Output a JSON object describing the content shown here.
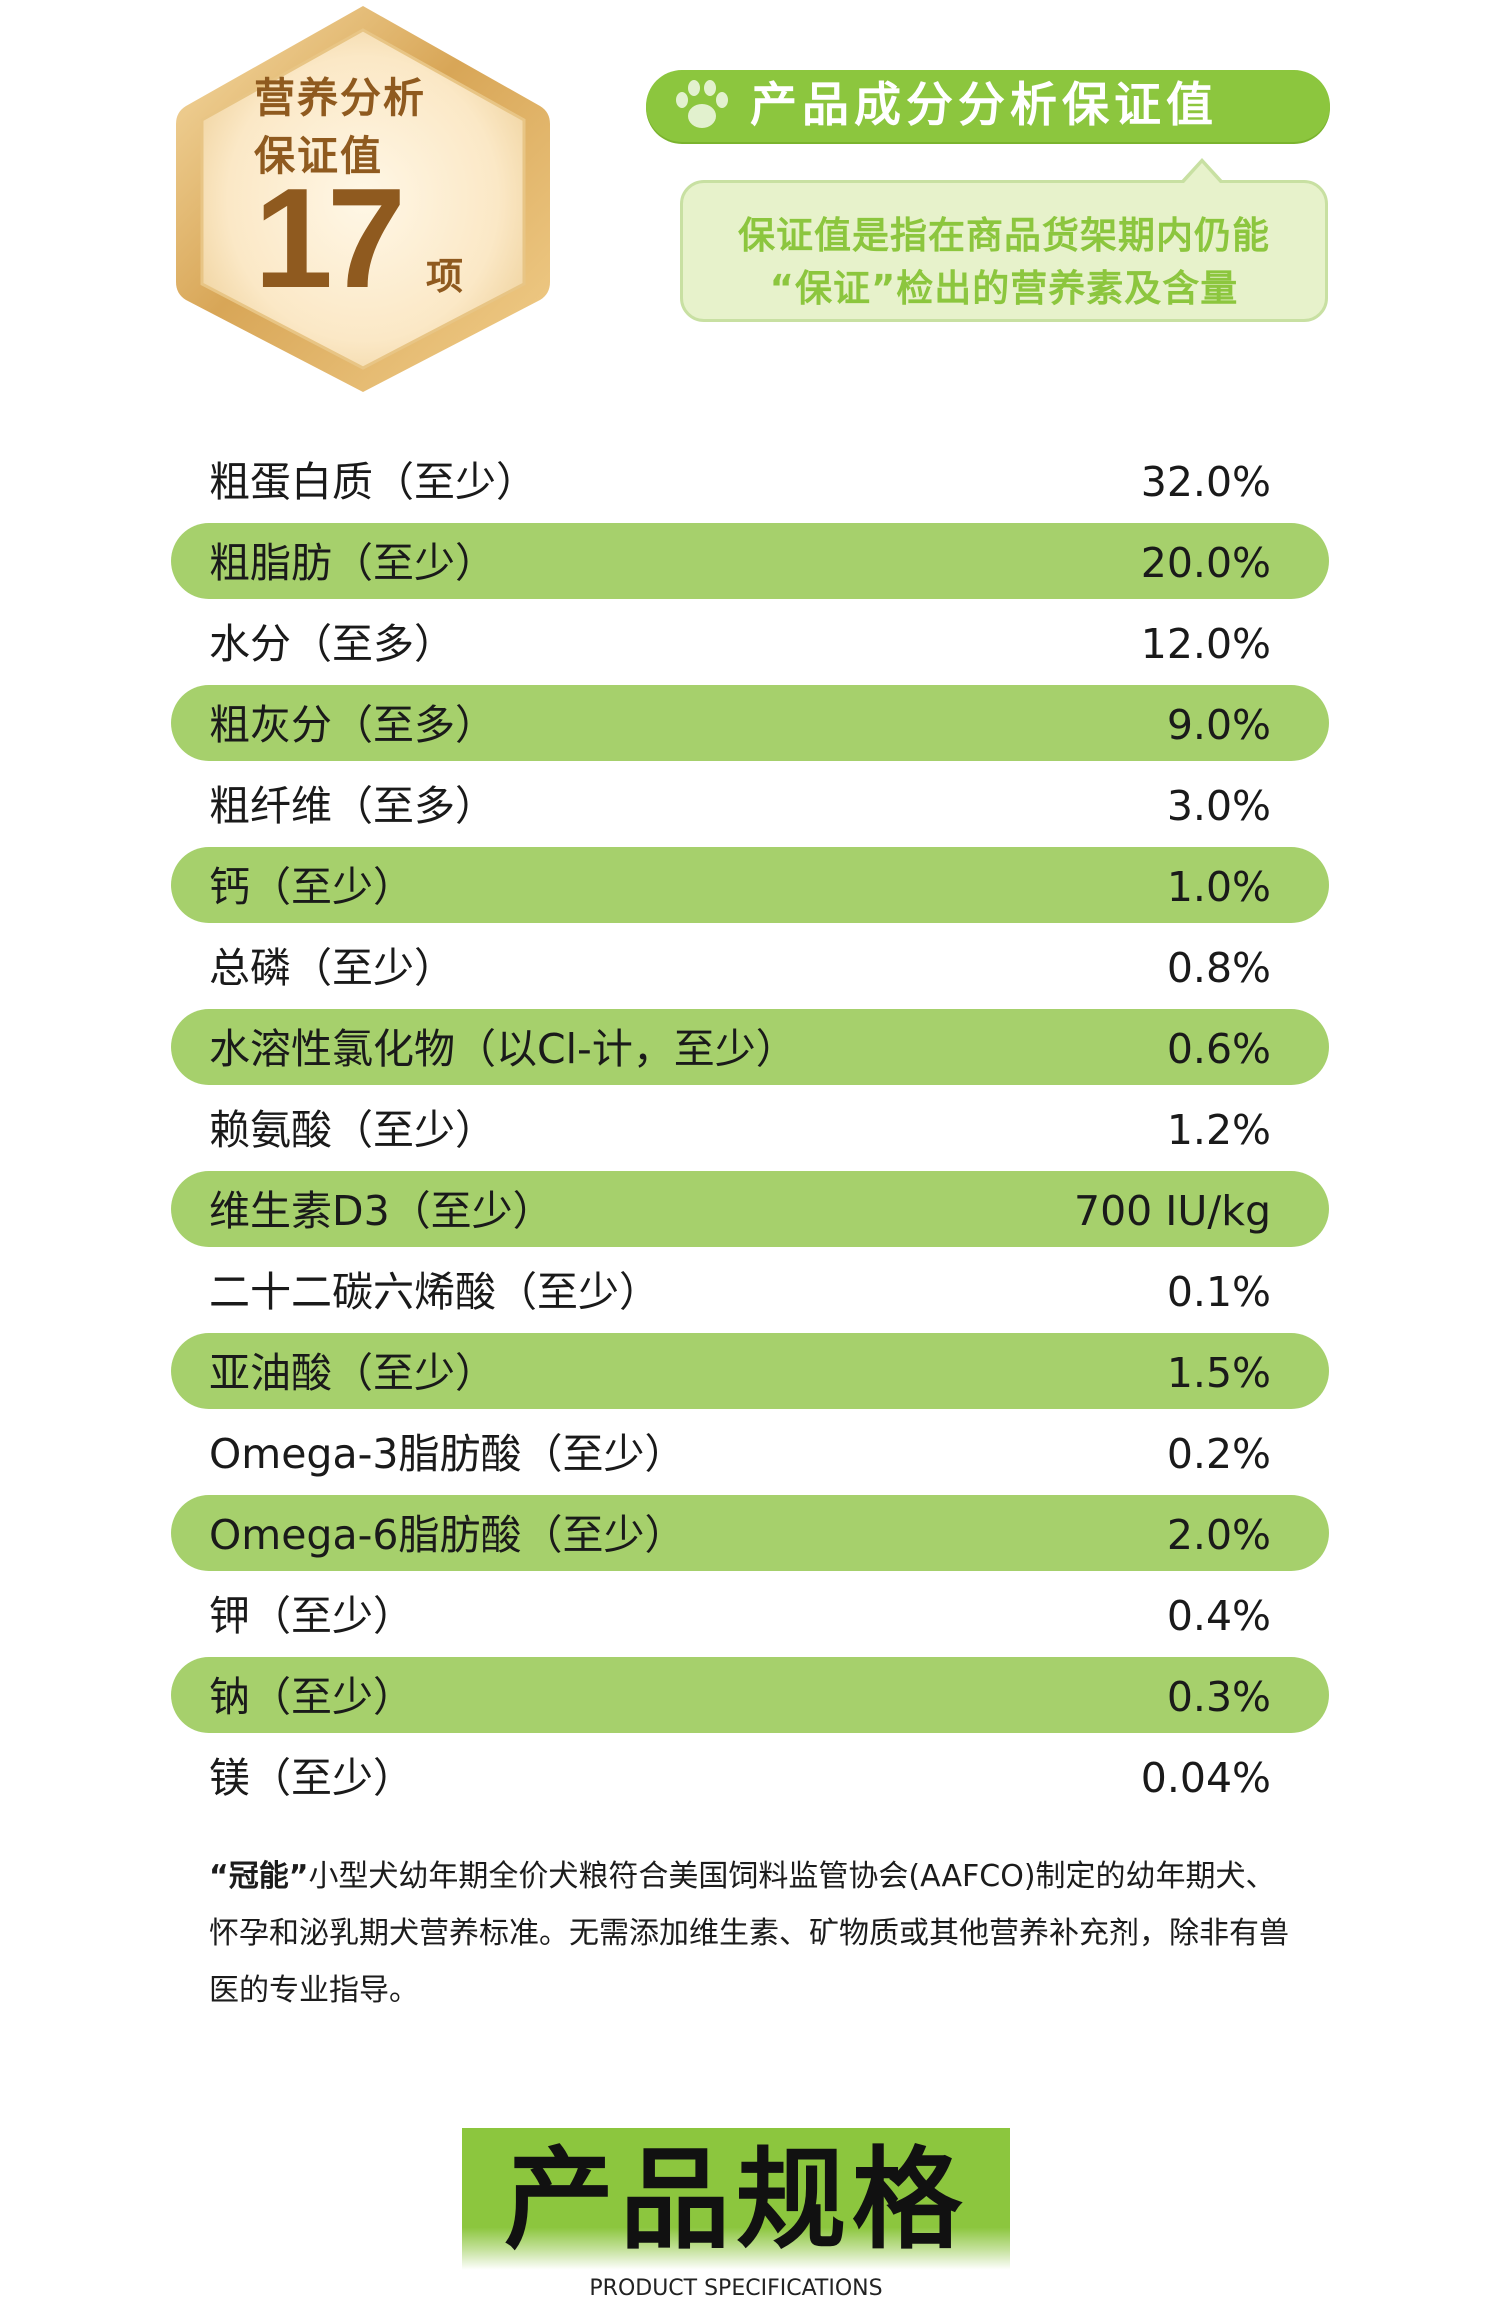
{
  "badge": {
    "line1": "营养分析",
    "line2": "保证值",
    "number": "17",
    "unit": "项"
  },
  "header": {
    "title": "产品成分分析保证值"
  },
  "bubble": {
    "line1": "保证值是指在商品货架期内仍能",
    "line2": "“保证”检出的营养素及含量"
  },
  "nutrients": [
    {
      "name": "粗蛋白质（至少）",
      "value": "32.0%"
    },
    {
      "name": "粗脂肪（至少）",
      "value": "20.0%"
    },
    {
      "name": "水分（至多）",
      "value": "12.0%"
    },
    {
      "name": "粗灰分（至多）",
      "value": "9.0%"
    },
    {
      "name": "粗纤维（至多）",
      "value": "3.0%"
    },
    {
      "name": "钙（至少）",
      "value": "1.0%"
    },
    {
      "name": "总磷（至少）",
      "value": "0.8%"
    },
    {
      "name": "水溶性氯化物（以Cl-计，至少）",
      "value": "0.6%"
    },
    {
      "name": "赖氨酸（至少）",
      "value": "1.2%"
    },
    {
      "name": "维生素D3（至少）",
      "value": "700 IU/kg"
    },
    {
      "name": "二十二碳六烯酸（至少）",
      "value": "0.1%"
    },
    {
      "name": "亚油酸（至少）",
      "value": "1.5%"
    },
    {
      "name": "Omega-3脂肪酸（至少）",
      "value": "0.2%"
    },
    {
      "name": "Omega-6脂肪酸（至少）",
      "value": "2.0%"
    },
    {
      "name": "钾（至少）",
      "value": "0.4%"
    },
    {
      "name": "钠（至少）",
      "value": "0.3%"
    },
    {
      "name": "镁（至少）",
      "value": "0.04%"
    }
  ],
  "footnote": {
    "brand": "“冠能”",
    "text": "小型犬幼年期全价犬粮符合美国饲料监管协会(AAFCO)制定的幼年期犬、怀孕和泌乳期犬营养标准。无需添加维生素、矿物质或其他营养补充剂，除非有兽医的专业指导。"
  },
  "spec": {
    "title": "产品规格",
    "subtitle": "PRODUCT SPECIFICATIONS"
  },
  "colors": {
    "green": "#8cc63e",
    "row_green": "#a6d06c",
    "bubble_bg": "#e7f2cb",
    "gold": "#8f5a1f"
  },
  "icons": {
    "paw": "paw-icon"
  }
}
